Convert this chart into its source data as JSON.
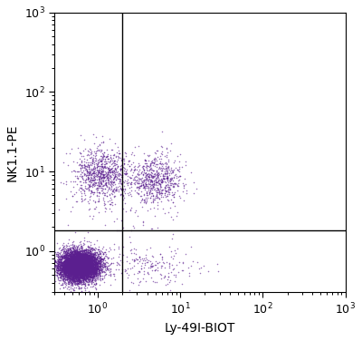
{
  "xlabel": "Ly-49I-BIOT",
  "ylabel": "NK1.1-PE",
  "xlim_log": [
    0.3,
    1000
  ],
  "ylim_log": [
    0.3,
    1000
  ],
  "dot_color": "#5B1F8F",
  "dot_alpha": 0.6,
  "dot_size": 1.2,
  "gate_x": 2.0,
  "gate_y": 1.8,
  "background_color": "#ffffff",
  "n_pop1": 8000,
  "n_pop2a": 900,
  "n_pop2b": 700,
  "n_pop3": 200,
  "n_scattered": 80,
  "seed": 42
}
